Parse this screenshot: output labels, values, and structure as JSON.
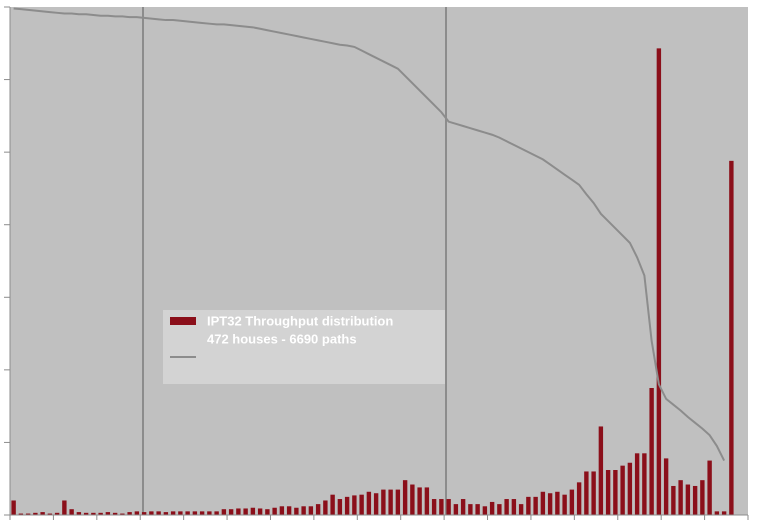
{
  "chart_data": {
    "type": "bar",
    "categories": [
      null,
      null,
      null,
      null,
      null,
      null,
      null,
      null,
      null,
      null,
      null,
      null,
      null,
      null,
      null,
      null,
      null,
      null,
      null,
      null,
      null,
      null,
      null,
      null,
      null,
      null,
      null,
      null,
      null,
      null,
      null,
      null,
      null,
      null,
      null,
      null,
      null,
      null,
      null,
      null,
      null,
      null,
      null,
      null,
      null,
      null,
      null,
      null,
      null,
      null,
      null,
      null,
      null,
      null,
      null,
      null,
      null,
      null,
      null,
      null,
      null,
      null,
      null,
      null,
      null,
      null,
      null,
      null,
      null,
      null,
      null,
      null,
      null,
      null,
      null,
      null,
      null,
      null,
      null,
      null,
      null,
      null,
      null,
      null,
      null,
      null,
      null,
      null,
      null,
      null,
      null,
      null,
      null,
      null,
      null,
      null,
      null,
      null,
      null,
      null
    ],
    "series": [
      {
        "name": "IPT32 Throughput distribution",
        "type": "bar",
        "color": "#8b0f1a",
        "values": [
          0.2,
          0.02,
          0.02,
          0.03,
          0.04,
          0.02,
          0.03,
          0.2,
          0.08,
          0.04,
          0.03,
          0.03,
          0.03,
          0.04,
          0.03,
          0.02,
          0.04,
          0.05,
          0.04,
          0.05,
          0.05,
          0.04,
          0.05,
          0.05,
          0.05,
          0.05,
          0.05,
          0.05,
          0.05,
          0.08,
          0.08,
          0.09,
          0.09,
          0.1,
          0.09,
          0.08,
          0.1,
          0.12,
          0.12,
          0.1,
          0.12,
          0.12,
          0.15,
          0.2,
          0.28,
          0.22,
          0.25,
          0.27,
          0.28,
          0.32,
          0.3,
          0.35,
          0.35,
          0.35,
          0.48,
          0.42,
          0.38,
          0.38,
          0.22,
          0.22,
          0.22,
          0.15,
          0.22,
          0.15,
          0.15,
          0.12,
          0.18,
          0.15,
          0.22,
          0.22,
          0.15,
          0.25,
          0.25,
          0.32,
          0.3,
          0.32,
          0.28,
          0.35,
          0.45,
          0.6,
          0.6,
          1.22,
          0.62,
          0.62,
          0.68,
          0.72,
          0.85,
          0.85,
          1.75,
          6.43,
          0.78,
          0.4,
          0.48,
          0.42,
          0.4,
          0.48,
          0.75,
          0.05,
          0.05,
          4.88
        ]
      },
      {
        "type": "line",
        "color": "#8c8c8c",
        "values": [
          6.98,
          6.97,
          6.96,
          6.95,
          6.94,
          6.93,
          6.92,
          6.91,
          6.91,
          6.9,
          6.9,
          6.89,
          6.88,
          6.88,
          6.87,
          6.87,
          6.86,
          6.86,
          6.85,
          6.84,
          6.83,
          6.82,
          6.82,
          6.81,
          6.8,
          6.79,
          6.78,
          6.77,
          6.76,
          6.76,
          6.75,
          6.74,
          6.73,
          6.72,
          6.7,
          6.68,
          6.66,
          6.64,
          6.62,
          6.6,
          6.58,
          6.56,
          6.54,
          6.52,
          6.5,
          6.48,
          6.47,
          6.45,
          6.4,
          6.35,
          6.3,
          6.25,
          6.2,
          6.15,
          6.05,
          5.95,
          5.85,
          5.75,
          5.65,
          5.55,
          5.42,
          5.39,
          5.36,
          5.33,
          5.3,
          5.27,
          5.24,
          5.2,
          5.15,
          5.1,
          5.05,
          5.0,
          4.95,
          4.9,
          4.83,
          4.76,
          4.69,
          4.62,
          4.55,
          4.42,
          4.3,
          4.15,
          4.05,
          3.95,
          3.85,
          3.75,
          3.55,
          3.3,
          2.4,
          1.8,
          1.6,
          1.52,
          1.44,
          1.35,
          1.27,
          1.19,
          1.1,
          0.95,
          0.75,
          null
        ]
      }
    ],
    "legend_note": "472 houses - 6690 paths",
    "ylim": [
      0,
      7
    ],
    "yticks": [
      0,
      1,
      2,
      3,
      4,
      5,
      6,
      7
    ],
    "grid": false,
    "legend": "center"
  }
}
